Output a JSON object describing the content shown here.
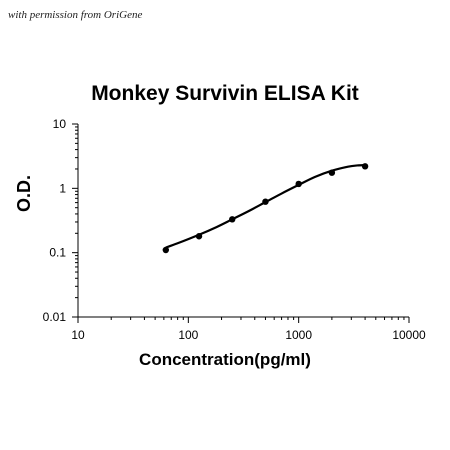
{
  "credit": "with permission from OriGene",
  "chart_data": {
    "type": "line",
    "title": "Monkey Survivin ELISA Kit",
    "xlabel": "Concentration(pg/ml)",
    "ylabel": "O.D.",
    "x_scale": "log",
    "y_scale": "log",
    "xlim": [
      10,
      10000
    ],
    "ylim": [
      0.01,
      10
    ],
    "x_ticks": [
      "10",
      "100",
      "1000",
      "10000"
    ],
    "y_ticks": [
      "10",
      "1",
      "0.1",
      "0.01"
    ],
    "x_tick_values": [
      10,
      100,
      1000,
      10000
    ],
    "y_tick_values": [
      10,
      1,
      0.1,
      0.01
    ],
    "grid": false,
    "legend": "none",
    "series_color": "#000000",
    "points": {
      "x": [
        62.5,
        125,
        250,
        500,
        1000,
        2000,
        4000
      ],
      "y": [
        0.11,
        0.18,
        0.33,
        0.62,
        1.17,
        1.75,
        2.2
      ]
    },
    "curve": {
      "x": [
        62.5,
        80,
        125,
        180,
        250,
        350,
        500,
        700,
        1000,
        1400,
        2000,
        2800,
        3400,
        4000
      ],
      "y": [
        0.12,
        0.14,
        0.19,
        0.25,
        0.33,
        0.44,
        0.61,
        0.83,
        1.13,
        1.5,
        1.88,
        2.17,
        2.27,
        2.3
      ]
    }
  }
}
